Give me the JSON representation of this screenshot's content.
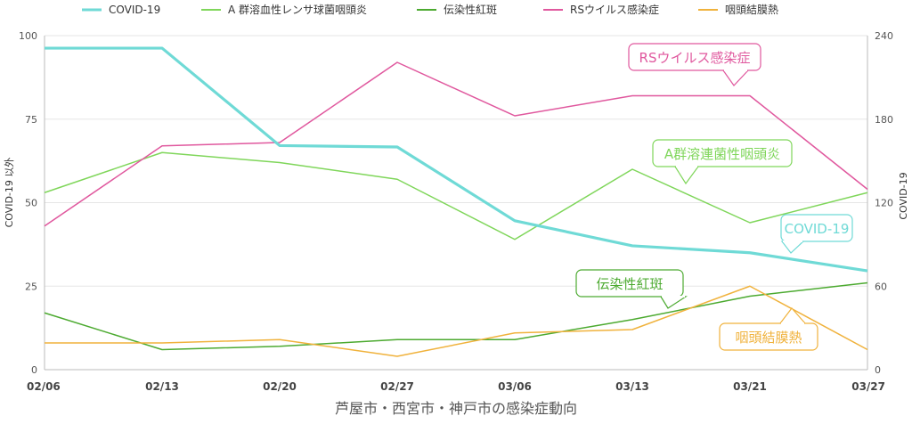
{
  "chart_data": {
    "type": "line",
    "xlabel": "芦屋市・西宮市・神戸市の感染症動向",
    "ylabel_left": "COVID-19 以外",
    "ylabel_right": "COVID-19",
    "categories": [
      "02/06",
      "02/13",
      "02/20",
      "02/27",
      "03/06",
      "03/13",
      "03/21",
      "03/27"
    ],
    "ylim_left": [
      0,
      100
    ],
    "yticks_left": [
      0,
      25,
      50,
      75,
      100
    ],
    "ylim_right": [
      0,
      240
    ],
    "yticks_right": [
      0,
      60,
      120,
      180,
      240
    ],
    "grid": true,
    "legend_position": "top",
    "series": [
      {
        "name": "COVID-19",
        "axis": "right",
        "color": "#6fdad6",
        "width": 3.2,
        "values": [
          231,
          231,
          161,
          160,
          107,
          89,
          84,
          71
        ],
        "callout": "COVID-19"
      },
      {
        "name": "A 群溶血性レンサ球菌咽頭炎",
        "axis": "left",
        "color": "#7fd65a",
        "width": 1.5,
        "values": [
          53,
          65,
          62,
          57,
          39,
          60,
          44,
          53
        ],
        "callout": "A群溶連菌性咽頭炎"
      },
      {
        "name": "伝染性紅斑",
        "axis": "left",
        "color": "#4caa30",
        "width": 1.5,
        "values": [
          17,
          6,
          7,
          9,
          9,
          15,
          22,
          26
        ],
        "callout": "伝染性紅斑"
      },
      {
        "name": "RSウイルス感染症",
        "axis": "left",
        "color": "#e0589e",
        "width": 1.5,
        "values": [
          43,
          67,
          68,
          92,
          76,
          82,
          82,
          54
        ],
        "callout": "RSウイルス感染症"
      },
      {
        "name": "咽頭結膜熱",
        "axis": "left",
        "color": "#f0b23c",
        "width": 1.5,
        "values": [
          8,
          8,
          9,
          4,
          11,
          12,
          25,
          6
        ],
        "callout": "咽頭結膜熱"
      }
    ]
  }
}
